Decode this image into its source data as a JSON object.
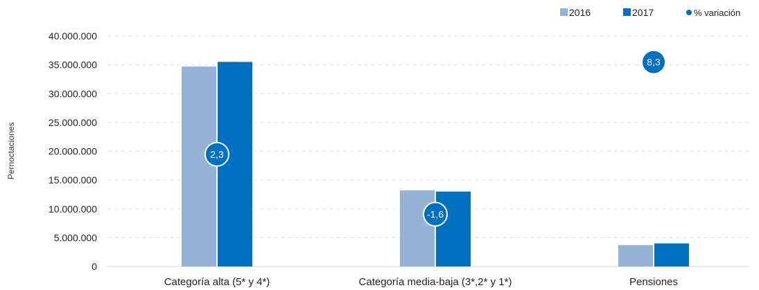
{
  "chart_data": {
    "type": "bar",
    "categories": [
      "Categoría alta (5* y 4*)",
      "Categoría media-baja (3*,2* y 1*)",
      "Pensiones"
    ],
    "series": [
      {
        "name": "2016",
        "values": [
          34700000,
          13200000,
          3700000
        ],
        "color": "#95b3d7"
      },
      {
        "name": "2017",
        "values": [
          35500000,
          13000000,
          4000000
        ],
        "color": "#0070c0"
      }
    ],
    "variation": {
      "name": "% variación",
      "values": [
        2.3,
        -1.6,
        8.3
      ],
      "labels": [
        "2,3",
        "-1,6",
        "8,3"
      ],
      "color": "#0070c0"
    },
    "ylabel": "Pernoctaciones",
    "ylim": [
      0,
      40000000
    ],
    "yticks": [
      0,
      5000000,
      10000000,
      15000000,
      20000000,
      25000000,
      30000000,
      35000000,
      40000000
    ],
    "ytick_labels": [
      "0",
      "5.000.000",
      "10.000.000",
      "15.000.000",
      "20.000.000",
      "25.000.000",
      "30.000.000",
      "35.000.000",
      "40.000.000"
    ],
    "grid": true,
    "legend_position": "top-right"
  }
}
